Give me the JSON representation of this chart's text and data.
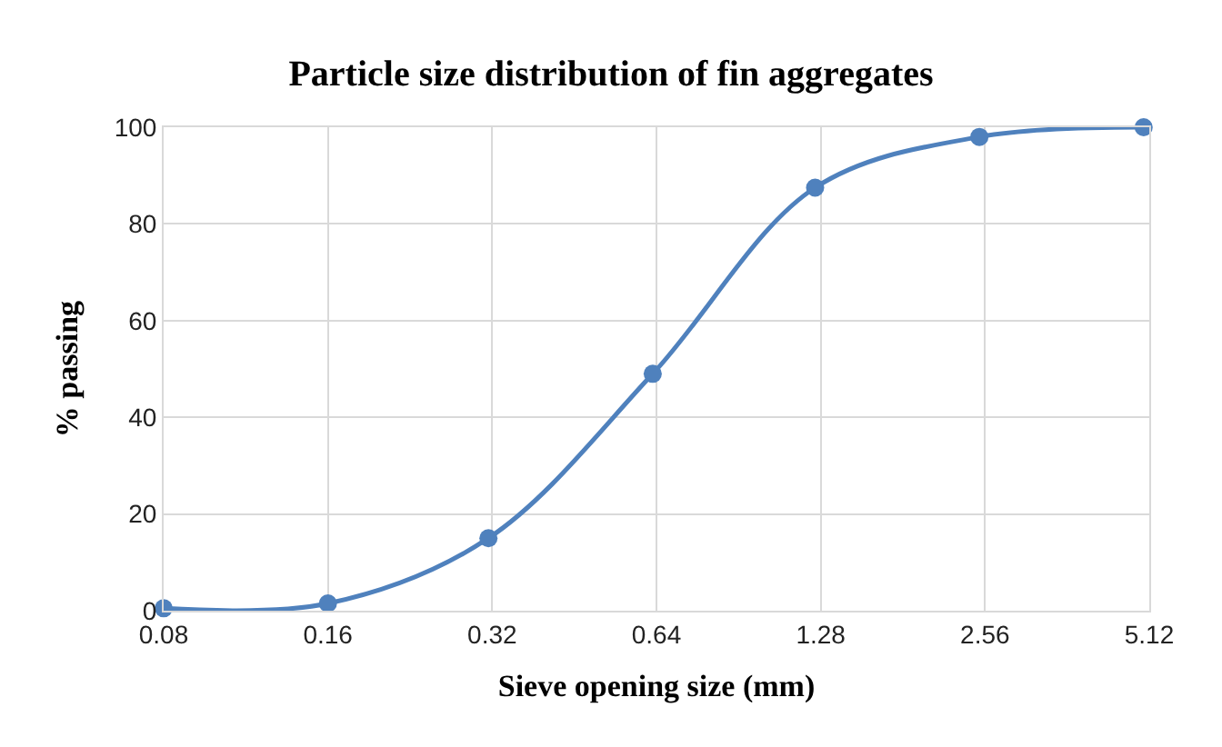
{
  "chart_data": {
    "type": "line",
    "title": "Particle size distribution of fin aggregates",
    "xlabel": "Sieve opening size (mm)",
    "ylabel": "% passing",
    "x": [
      0.08,
      0.16,
      0.315,
      0.63,
      1.25,
      2.5,
      5
    ],
    "series": [
      {
        "color": "#4f81bd",
        "values": [
          0.5,
          1.5,
          15,
          49,
          87.5,
          98,
          100
        ]
      }
    ],
    "log": "x",
    "xlim": [
      0.08,
      5.12
    ],
    "xticks": [
      0.08,
      0.16,
      0.32,
      0.64,
      1.28,
      2.56,
      5.12
    ],
    "ylim": [
      0,
      100
    ],
    "yticks": [
      0,
      20,
      40,
      60,
      80,
      100
    ],
    "grid": true,
    "marker": "circle",
    "line_style": "solid",
    "legend": false
  }
}
